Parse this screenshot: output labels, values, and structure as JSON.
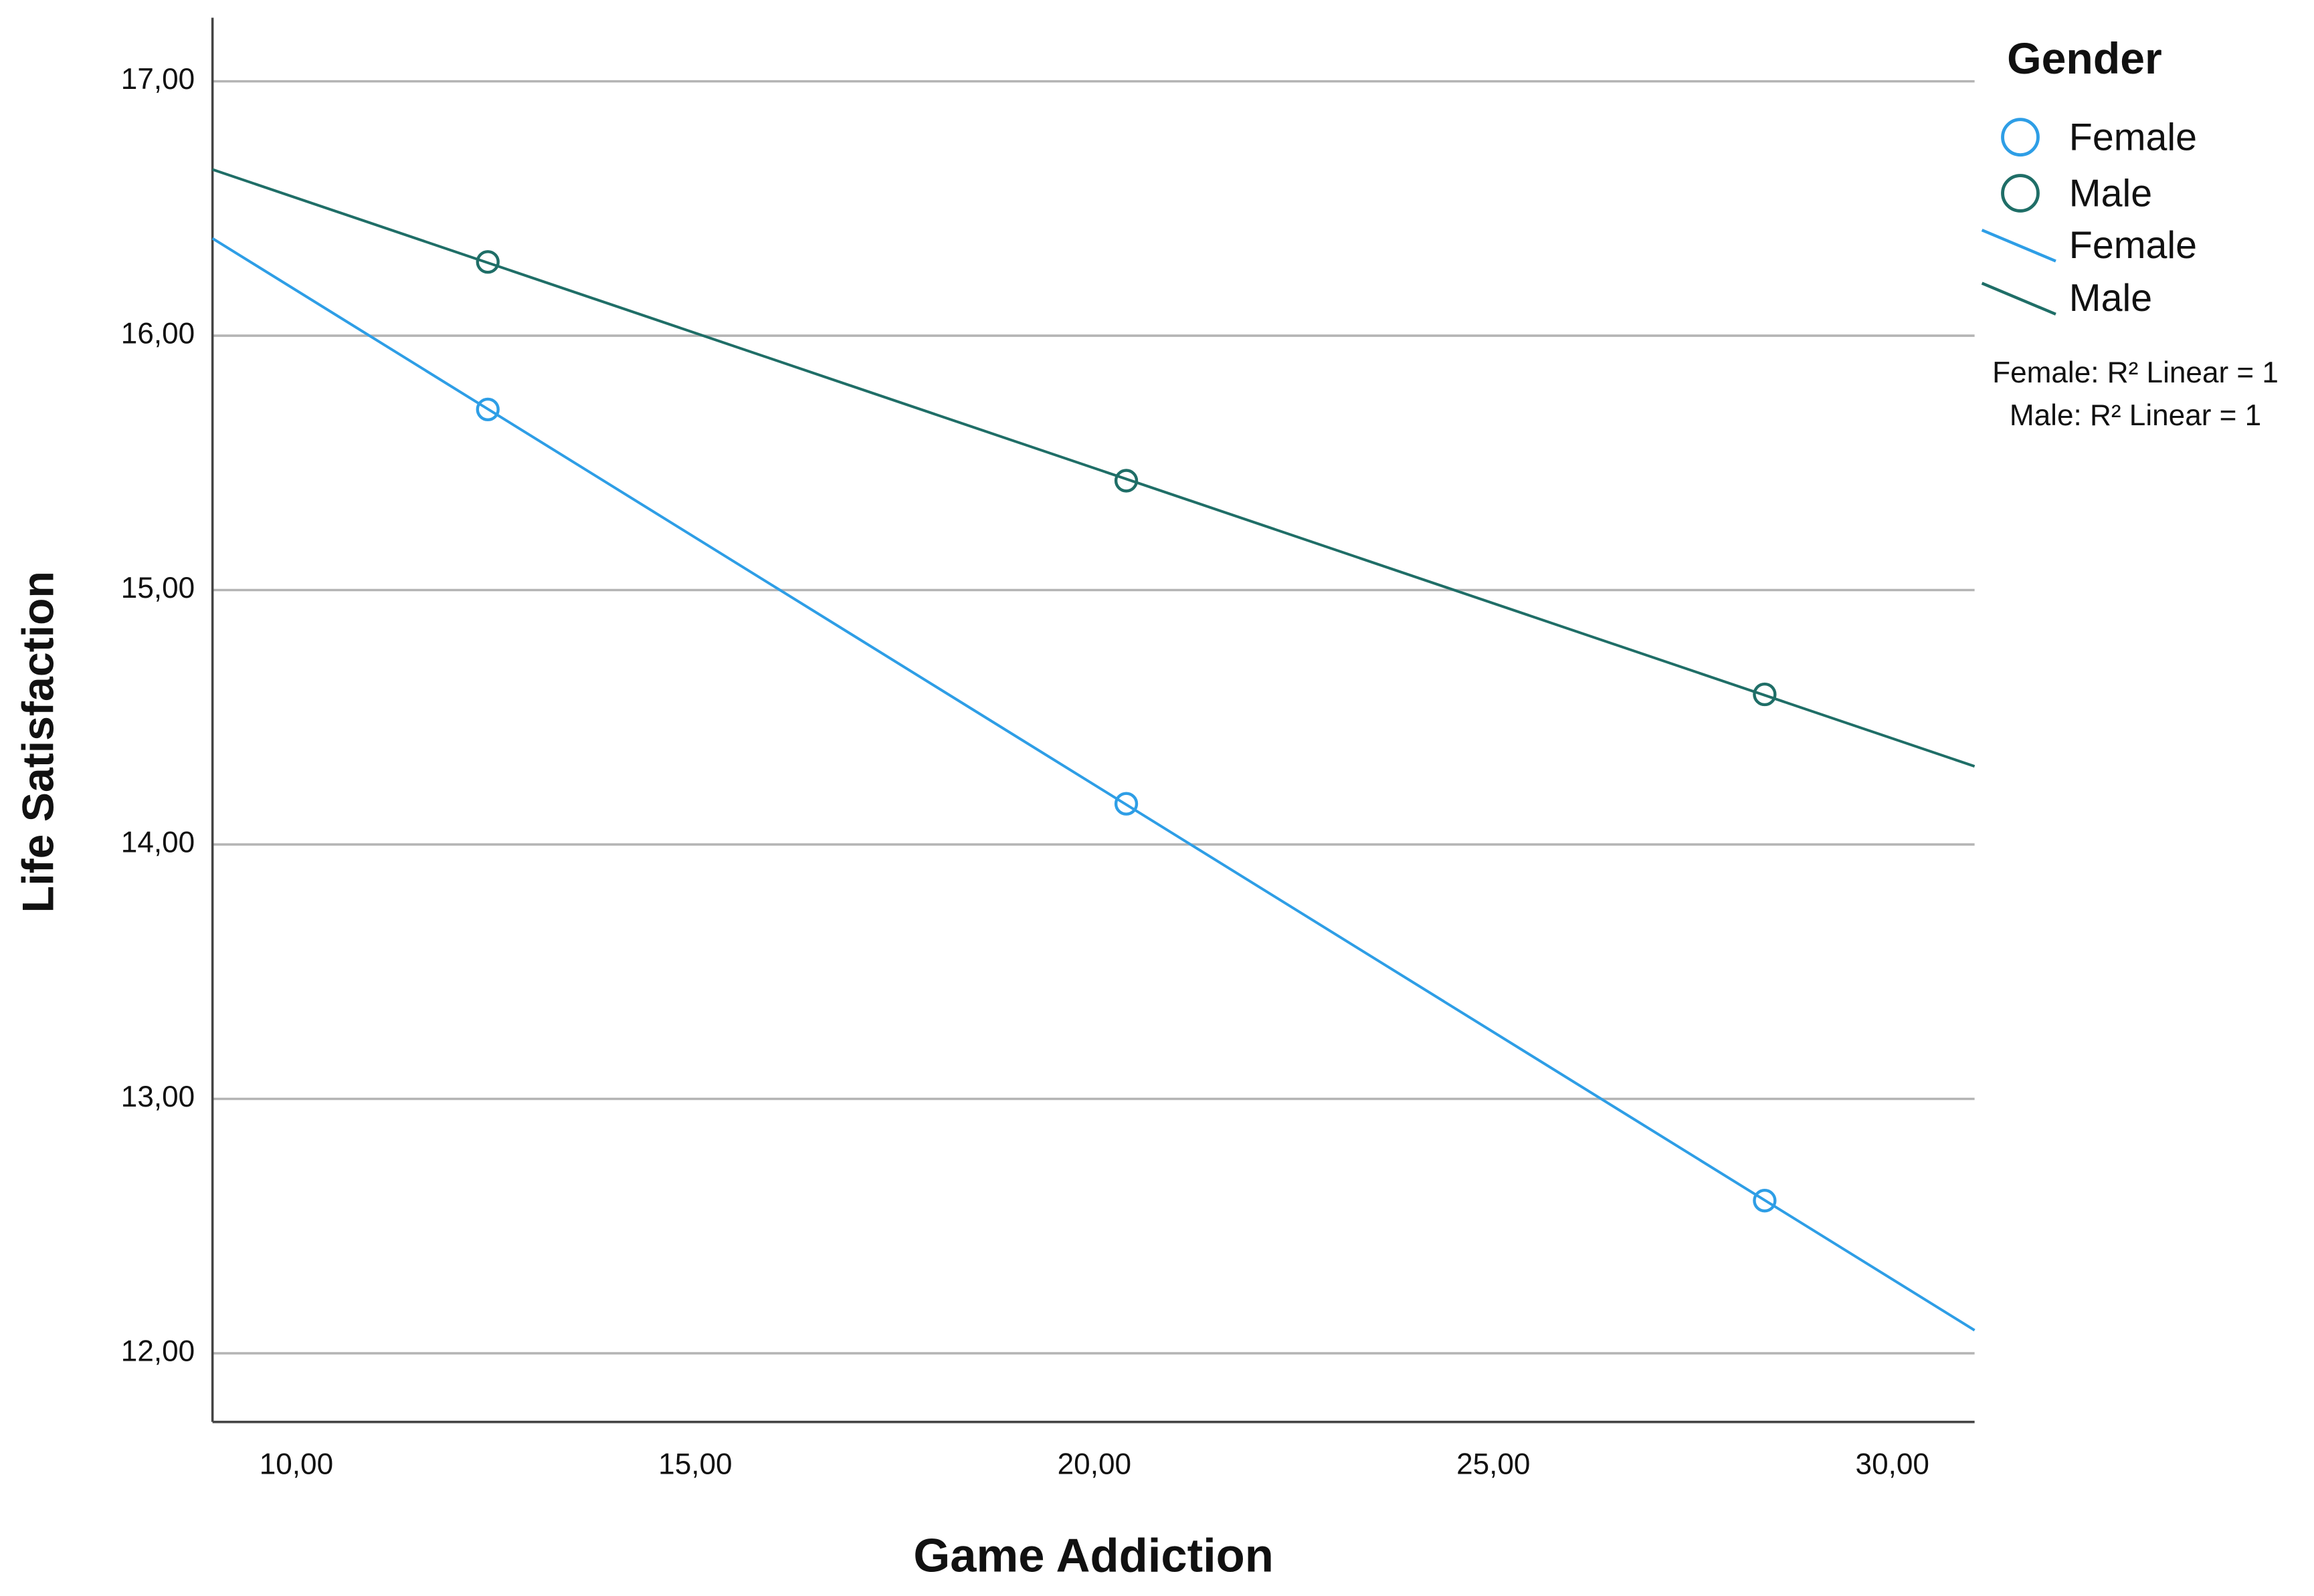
{
  "chart_data": {
    "type": "scatter",
    "x_label": "Game Addiction",
    "y_label": "Life Satisfaction",
    "legend_title": "Gender",
    "annotations": [
      "Female: R² Linear = 1",
      "Male: R² Linear = 1"
    ],
    "series": [
      {
        "name": "Female",
        "color": "#2e9ee6",
        "x": [
          12.4,
          20.4,
          28.4
        ],
        "values": [
          15.71,
          14.16,
          12.6
        ]
      },
      {
        "name": "Male",
        "color": "#1f6e67",
        "x": [
          12.4,
          20.4,
          28.4
        ],
        "values": [
          16.29,
          15.43,
          14.59
        ]
      }
    ],
    "fit_lines": true,
    "xlim": [
      8.95,
      31.03
    ],
    "ylim": [
      11.73,
      17.25
    ],
    "xticks": [
      {
        "value": 10,
        "label": "10,00"
      },
      {
        "value": 15,
        "label": "15,00"
      },
      {
        "value": 20,
        "label": "20,00"
      },
      {
        "value": 25,
        "label": "25,00"
      },
      {
        "value": 30,
        "label": "30,00"
      }
    ],
    "yticks": [
      {
        "value": 12,
        "label": "12,00"
      },
      {
        "value": 13,
        "label": "13,00"
      },
      {
        "value": 14,
        "label": "14,00"
      },
      {
        "value": 15,
        "label": "15,00"
      },
      {
        "value": 16,
        "label": "16,00"
      },
      {
        "value": 17,
        "label": "17,00"
      }
    ],
    "grid": true,
    "legend": "right"
  }
}
